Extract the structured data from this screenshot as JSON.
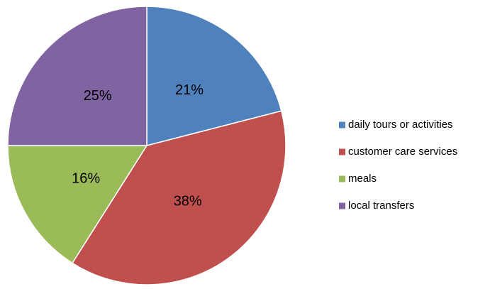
{
  "chart_data": {
    "type": "pie",
    "categories": [
      "daily tours or activities",
      "customer care services",
      "meals",
      "local transfers"
    ],
    "values": [
      21,
      38,
      16,
      25
    ],
    "value_labels": [
      "21%",
      "38%",
      "16%",
      "25%"
    ],
    "colors": [
      "#4f81bd",
      "#c0504d",
      "#9bbb59",
      "#8064a2"
    ],
    "legend": "right"
  }
}
